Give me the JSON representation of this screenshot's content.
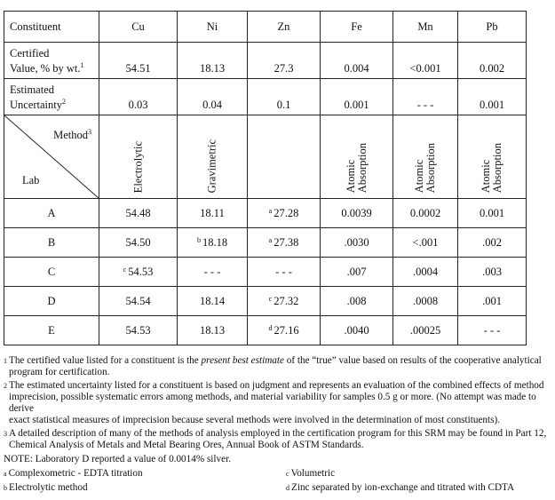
{
  "table": {
    "header": [
      "Constituent",
      "Cu",
      "Ni",
      "Zn",
      "Fe",
      "Mn",
      "Pb"
    ],
    "certified": {
      "label_line1": "Certified",
      "label_line2": "Value, % by wt.",
      "sup": "1",
      "values": [
        "54.51",
        "18.13",
        "27.3",
        "0.004",
        "<0.001",
        "0.002"
      ]
    },
    "uncertainty": {
      "label_line1": "Estimated",
      "label_line2": "Uncertainty",
      "sup": "2",
      "values": [
        "0.03",
        "0.04",
        "0.1",
        "0.001",
        "- - -",
        "0.001"
      ]
    },
    "method_row": {
      "method_label": "Method",
      "method_sup": "3",
      "lab_label": "Lab",
      "methods": [
        [
          "Electrolytic"
        ],
        [
          "Gravimetric"
        ],
        [],
        [
          "Atomic",
          "Absorption"
        ],
        [
          "Atomic",
          "Absorption"
        ],
        [
          "Atomic",
          "Absorption"
        ]
      ]
    },
    "labs": [
      {
        "lab": "A",
        "cells": [
          {
            "v": "54.48"
          },
          {
            "v": "18.11"
          },
          {
            "f": "a",
            "v": "27.28"
          },
          {
            "v": "0.0039"
          },
          {
            "v": "0.0002"
          },
          {
            "v": "0.001"
          }
        ]
      },
      {
        "lab": "B",
        "cells": [
          {
            "v": "54.50"
          },
          {
            "f": "b",
            "v": "18.18"
          },
          {
            "f": "a",
            "v": "27.38"
          },
          {
            "v": ".0030"
          },
          {
            "v": "<.001"
          },
          {
            "v": ".002"
          }
        ]
      },
      {
        "lab": "C",
        "cells": [
          {
            "f": "c",
            "v": "54.53"
          },
          {
            "v": "- - -"
          },
          {
            "v": "- - -"
          },
          {
            "v": ".007"
          },
          {
            "v": ".0004"
          },
          {
            "v": ".003"
          }
        ]
      },
      {
        "lab": "D",
        "cells": [
          {
            "v": "54.54"
          },
          {
            "v": "18.14"
          },
          {
            "f": "c",
            "v": "27.32"
          },
          {
            "v": ".008"
          },
          {
            "v": ".0008"
          },
          {
            "v": ".001"
          }
        ]
      },
      {
        "lab": "E",
        "cells": [
          {
            "v": "54.53"
          },
          {
            "v": "18.13"
          },
          {
            "f": "d",
            "v": "27.16"
          },
          {
            "v": ".0040"
          },
          {
            "v": ".00025"
          },
          {
            "v": "- - -"
          }
        ]
      }
    ]
  },
  "footnotes": {
    "n1": {
      "mark": "1",
      "pre": "The certified value listed for a constituent is the ",
      "em": "present best estimate",
      "post": " of the “true” value based on results of the cooperative analytical",
      "cont": "program for certification."
    },
    "n2": {
      "mark": "2",
      "line1": "The estimated uncertainty listed for a constituent is based on judgment and represents an evaluation of the combined effects of method",
      "line2": "imprecision, possible systematic errors among methods, and material variability for samples 0.5 g or more. (No attempt was made to derive",
      "line3": "exact statistical measures of imprecision because several methods were involved in the determination of most constituents)."
    },
    "n3": {
      "mark": "3",
      "line1": "A detailed description of many of the methods of analysis employed in the certification program for this SRM may be found in Part 12,",
      "line2": "Chemical Analysis of Metals and Metal Bearing Ores, Annual Book of ASTM Standards."
    },
    "note": "NOTE:  Laboratory D reported a value of 0.0014% silver.",
    "a": {
      "mark": "a",
      "text": "Complexometric - EDTA titration"
    },
    "b": {
      "mark": "b",
      "text": "Electrolytic method"
    },
    "c": {
      "mark": "c",
      "text": "Volumetric"
    },
    "d": {
      "mark": "d",
      "text": "Zinc separated by ion-exchange and titrated with CDTA"
    }
  }
}
